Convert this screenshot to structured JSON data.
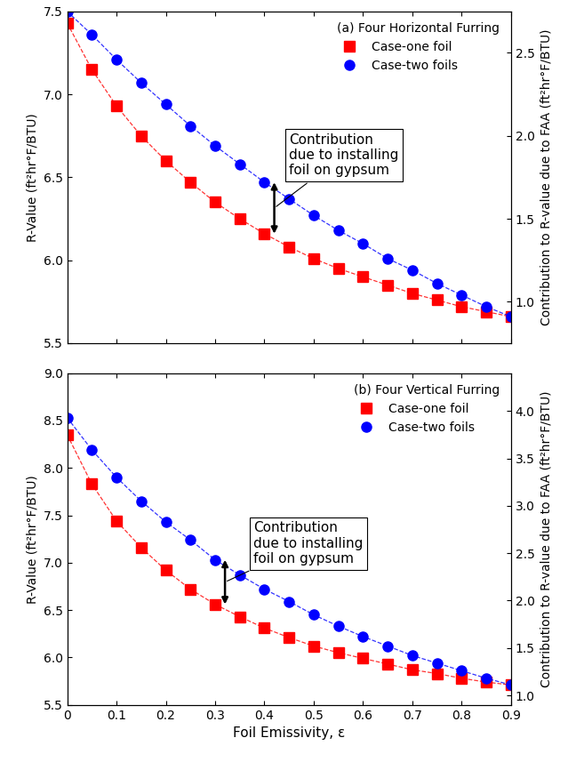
{
  "chart_data": [
    {
      "type": "line",
      "title": "(a) Four Horizontal Furring",
      "x": [
        0,
        0.05,
        0.1,
        0.15,
        0.2,
        0.25,
        0.3,
        0.35,
        0.4,
        0.45,
        0.5,
        0.55,
        0.6,
        0.65,
        0.7,
        0.75,
        0.8,
        0.85,
        0.9
      ],
      "series": [
        {
          "name": "Case-one foil",
          "color": "#ff0000",
          "marker": "square",
          "line_style": "dashed",
          "values": [
            7.43,
            7.15,
            6.93,
            6.75,
            6.6,
            6.47,
            6.35,
            6.25,
            6.16,
            6.08,
            6.01,
            5.95,
            5.9,
            5.85,
            5.8,
            5.76,
            5.72,
            5.69,
            5.66
          ]
        },
        {
          "name": "Case-two foils",
          "color": "#0000ff",
          "marker": "circle",
          "line_style": "dashed",
          "values": [
            7.5,
            7.36,
            7.21,
            7.07,
            6.94,
            6.81,
            6.69,
            6.58,
            6.47,
            6.37,
            6.27,
            6.18,
            6.1,
            6.01,
            5.94,
            5.86,
            5.79,
            5.72,
            5.66
          ]
        }
      ],
      "y_label": "R-Value (ft²hr°F/BTU)",
      "y2_label": "Contribution to R-value due to FAA (ft²hr°F/BTU)",
      "annotation": "Contribution\ndue to installing\nfoil on gypsum",
      "xlim": [
        0,
        0.9
      ],
      "xticks": [
        0,
        0.1,
        0.2,
        0.3,
        0.4,
        0.5,
        0.6,
        0.7,
        0.8,
        0.9
      ],
      "ylim": [
        5.5,
        7.5
      ],
      "yticks": [
        5.5,
        6.0,
        6.5,
        7.0,
        7.5
      ],
      "y2lim": [
        0.75,
        2.75
      ],
      "y2ticks": [
        1.0,
        1.5,
        2.0,
        2.5
      ],
      "legend": "upper right",
      "grid": false,
      "tick_labels": "y"
    },
    {
      "type": "line",
      "title": "(b) Four Vertical Furring",
      "x": [
        0,
        0.05,
        0.1,
        0.15,
        0.2,
        0.25,
        0.3,
        0.35,
        0.4,
        0.45,
        0.5,
        0.55,
        0.6,
        0.65,
        0.7,
        0.75,
        0.8,
        0.85,
        0.9
      ],
      "series": [
        {
          "name": "Case-one foil",
          "color": "#ff0000",
          "marker": "square",
          "line_style": "dashed",
          "values": [
            8.35,
            7.83,
            7.44,
            7.16,
            6.92,
            6.72,
            6.56,
            6.43,
            6.31,
            6.21,
            6.12,
            6.05,
            5.99,
            5.93,
            5.87,
            5.83,
            5.78,
            5.74,
            5.71
          ]
        },
        {
          "name": "Case-two foils",
          "color": "#0000ff",
          "marker": "circle",
          "line_style": "dashed",
          "values": [
            8.53,
            8.19,
            7.9,
            7.65,
            7.43,
            7.24,
            7.03,
            6.87,
            6.72,
            6.59,
            6.45,
            6.33,
            6.22,
            6.12,
            6.02,
            5.94,
            5.86,
            5.78,
            5.71
          ]
        }
      ],
      "x_label": "Foil Emissivity, ε",
      "y_label": "R-Value (ft²hr°F/BTU)",
      "y2_label": "Contribution to R-value due to FAA (ft²hr°F/BTU)",
      "annotation": "Contribution\ndue to installing\nfoil on gypsum",
      "xlim": [
        0,
        0.9
      ],
      "xticks": [
        0,
        0.1,
        0.2,
        0.3,
        0.4,
        0.5,
        0.6,
        0.7,
        0.8,
        0.9
      ],
      "ylim": [
        5.5,
        9.0
      ],
      "yticks": [
        5.5,
        6.0,
        6.5,
        7.0,
        7.5,
        8.0,
        8.5,
        9.0
      ],
      "y2lim": [
        0.9,
        4.4
      ],
      "y2ticks": [
        1.0,
        1.5,
        2.0,
        2.5,
        3.0,
        3.5,
        4.0
      ],
      "legend": "upper right",
      "grid": false
    }
  ]
}
